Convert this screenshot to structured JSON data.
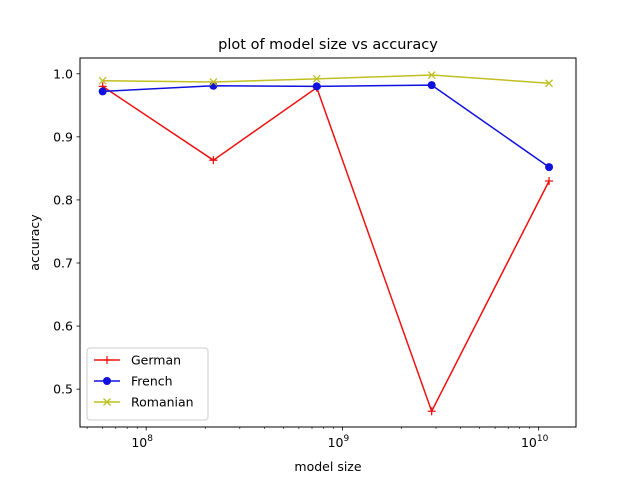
{
  "chart_data": {
    "type": "line",
    "title": "plot of model size vs accuracy",
    "xlabel": "model size",
    "ylabel": "accuracy",
    "xscale": "log",
    "xlim": [
      46000000,
      15500000000
    ],
    "ylim": [
      0.44,
      1.025
    ],
    "xticks": [
      {
        "value": 100000000,
        "base": "10",
        "exp": "8"
      },
      {
        "value": 1000000000,
        "base": "10",
        "exp": "9"
      },
      {
        "value": 10000000000,
        "base": "10",
        "exp": "10"
      }
    ],
    "yticks": [
      {
        "value": 0.5,
        "label": "0.5"
      },
      {
        "value": 0.6,
        "label": "0.6"
      },
      {
        "value": 0.7,
        "label": "0.7"
      },
      {
        "value": 0.8,
        "label": "0.8"
      },
      {
        "value": 0.9,
        "label": "0.9"
      },
      {
        "value": 1.0,
        "label": "1.0"
      }
    ],
    "grid": false,
    "legend_position": "lower-left",
    "x": [
      60000000,
      220000000,
      740000000,
      2850000000,
      11300000000
    ],
    "series": [
      {
        "name": "German",
        "color": "#ee1111",
        "marker": "plus",
        "values": [
          0.98,
          0.863,
          0.978,
          0.465,
          0.83
        ]
      },
      {
        "name": "French",
        "color": "#1111dd",
        "marker": "circle",
        "values": [
          0.972,
          0.981,
          0.98,
          0.982,
          0.852
        ]
      },
      {
        "name": "Romanian",
        "color": "#bfbf22",
        "marker": "x",
        "values": [
          0.989,
          0.987,
          0.992,
          0.998,
          0.985
        ]
      }
    ]
  }
}
